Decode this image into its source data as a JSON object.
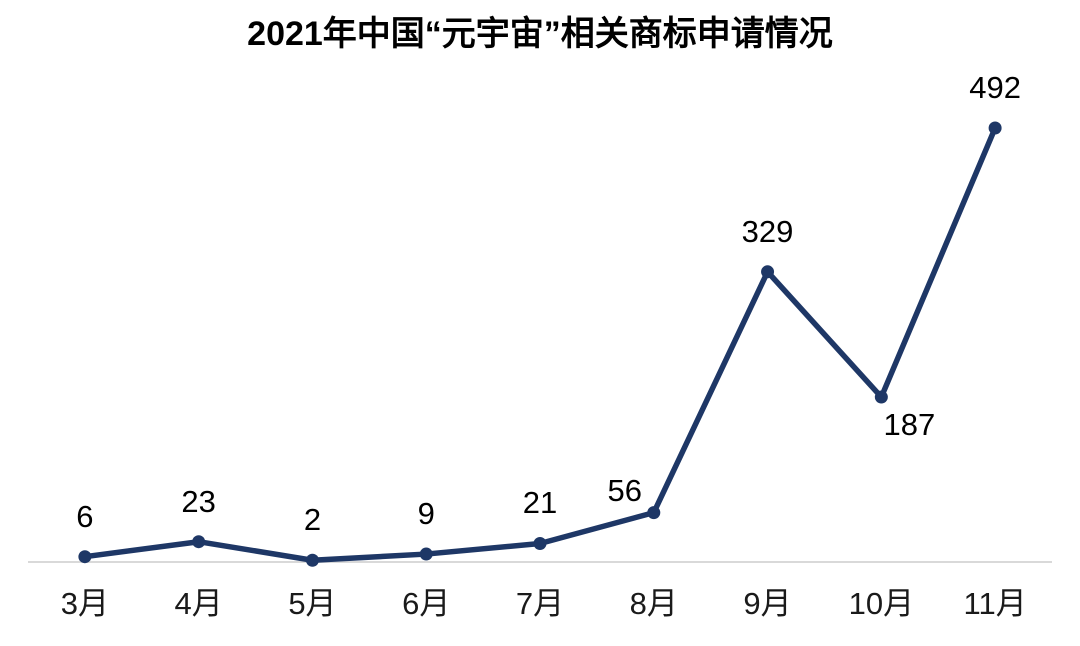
{
  "page": {
    "background_color": "#ffffff"
  },
  "chart_data": {
    "type": "line",
    "title": "2021年中国“元宇宙”相关商标申请情况",
    "categories": [
      "3月",
      "4月",
      "5月",
      "6月",
      "7月",
      "8月",
      "9月",
      "10月",
      "11月"
    ],
    "values": [
      6,
      23,
      2,
      9,
      21,
      56,
      329,
      187,
      492
    ],
    "data_labels": [
      "6",
      "23",
      "2",
      "9",
      "21",
      "56",
      "329",
      "187",
      "492"
    ],
    "label_positions": [
      "above",
      "above",
      "above",
      "above",
      "above",
      "above-left",
      "above",
      "below-right",
      "above"
    ],
    "xlabel": "",
    "ylabel": "",
    "ylim": [
      0,
      492
    ],
    "grid": false,
    "legend_position": "none",
    "y_axis_visible": false,
    "x_axis_line_visible": true,
    "line_color": "#1e3766",
    "marker_color": "#1e3766",
    "axis_line_color": "#d9d9d9",
    "title_color": "#000000",
    "data_label_color": "#000000",
    "tick_label_color": "#1a1a1a"
  }
}
